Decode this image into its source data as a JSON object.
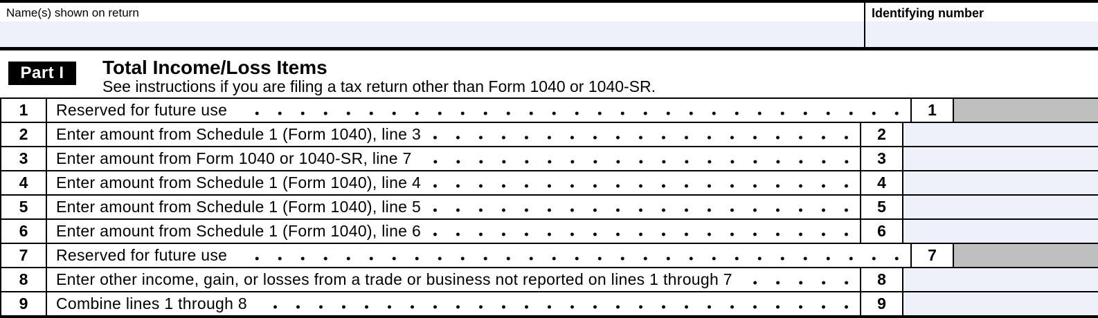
{
  "header": {
    "name_label": "Name(s) shown on return",
    "name_value": "",
    "identifying_label": "Identifying number",
    "identifying_value": ""
  },
  "part1": {
    "badge": "Part I",
    "title": "Total Income/Loss Items",
    "subtitle": "See instructions if you are filing a tax return other than Form 1040 or 1040-SR."
  },
  "table": {
    "rows": [
      {
        "line": "1",
        "description": "Reserved for future use",
        "value": "",
        "reserved": true
      },
      {
        "line": "2",
        "description": "Enter amount from Schedule 1 (Form 1040), line 3",
        "value": "",
        "reserved": false
      },
      {
        "line": "3",
        "description": "Enter amount from Form 1040 or 1040-SR, line 7",
        "value": "",
        "reserved": false
      },
      {
        "line": "4",
        "description": "Enter amount from Schedule 1 (Form 1040), line 4",
        "value": "",
        "reserved": false
      },
      {
        "line": "5",
        "description": "Enter amount from Schedule 1 (Form 1040), line 5",
        "value": "",
        "reserved": false
      },
      {
        "line": "6",
        "description": "Enter amount from Schedule 1 (Form 1040), line 6",
        "value": "",
        "reserved": false
      },
      {
        "line": "7",
        "description": "Reserved for future use",
        "value": "",
        "reserved": true
      },
      {
        "line": "8",
        "description": "Enter other income, gain, or losses from a trade or business not reported on lines 1 through 7",
        "value": "",
        "reserved": false
      },
      {
        "line": "9",
        "description": "Combine lines 1 through 8",
        "value": "",
        "reserved": false
      }
    ]
  },
  "colors": {
    "field_highlight": "#eff1fa",
    "reserved_gray": "#bfbfbf",
    "line_black": "#000000"
  }
}
